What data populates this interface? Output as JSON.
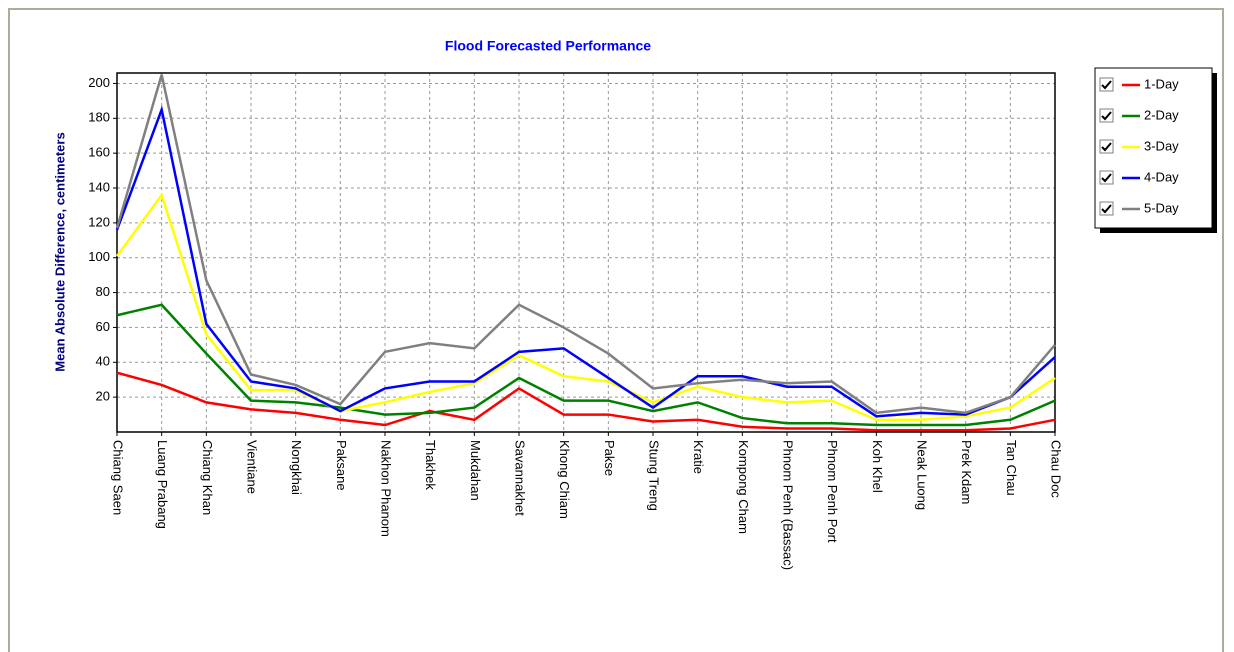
{
  "chart_data": {
    "type": "line",
    "title": "Flood Forecasted Performance",
    "y_label": "Mean Absolute Difference, centimeters",
    "categories": [
      "Chiang Saen",
      "Luang Prabang",
      "Chiang Khan",
      "Vientiane",
      "Nongkhai",
      "Paksane",
      "Nakhon Phanom",
      "Thakhek",
      "Mukdahan",
      "Savannakhet",
      "Khong Chiam",
      "Pakse",
      "Stung Treng",
      "Kratie",
      "Kompong Cham",
      "Phnom Penh (Bassac)",
      "Phnom Penh Port",
      "Koh Khel",
      "Neak Luong",
      "Prek Kdam",
      "Tan Chau",
      "Chau Doc"
    ],
    "series": [
      {
        "name": "1-Day",
        "color": "#ff0000",
        "values": [
          34,
          27,
          17,
          13,
          11,
          7,
          4,
          12,
          7,
          25,
          10,
          10,
          6,
          7,
          3,
          2,
          2,
          1,
          1,
          1,
          2,
          7
        ]
      },
      {
        "name": "2-Day",
        "color": "#008000",
        "values": [
          67,
          73,
          45,
          18,
          17,
          14,
          10,
          11,
          14,
          31,
          18,
          18,
          12,
          17,
          8,
          5,
          5,
          4,
          4,
          4,
          7,
          18
        ]
      },
      {
        "name": "3-Day",
        "color": "#ffff00",
        "values": [
          101,
          136,
          56,
          24,
          24,
          12,
          17,
          23,
          28,
          44,
          32,
          29,
          17,
          26,
          20,
          17,
          18,
          7,
          7,
          9,
          14,
          31
        ]
      },
      {
        "name": "4-Day",
        "color": "#0000ff",
        "values": [
          116,
          185,
          62,
          29,
          25,
          12,
          25,
          29,
          29,
          46,
          48,
          31,
          14,
          32,
          32,
          26,
          26,
          9,
          11,
          10,
          20,
          43
        ]
      },
      {
        "name": "5-Day",
        "color": "#808080",
        "values": [
          117,
          205,
          87,
          33,
          27,
          16,
          46,
          51,
          48,
          73,
          60,
          45,
          25,
          28,
          30,
          28,
          29,
          11,
          14,
          11,
          20,
          50
        ]
      }
    ],
    "ylim": [
      0,
      206
    ],
    "yticks": [
      20,
      40,
      60,
      80,
      100,
      120,
      140,
      160,
      180,
      200
    ],
    "grid": true
  }
}
